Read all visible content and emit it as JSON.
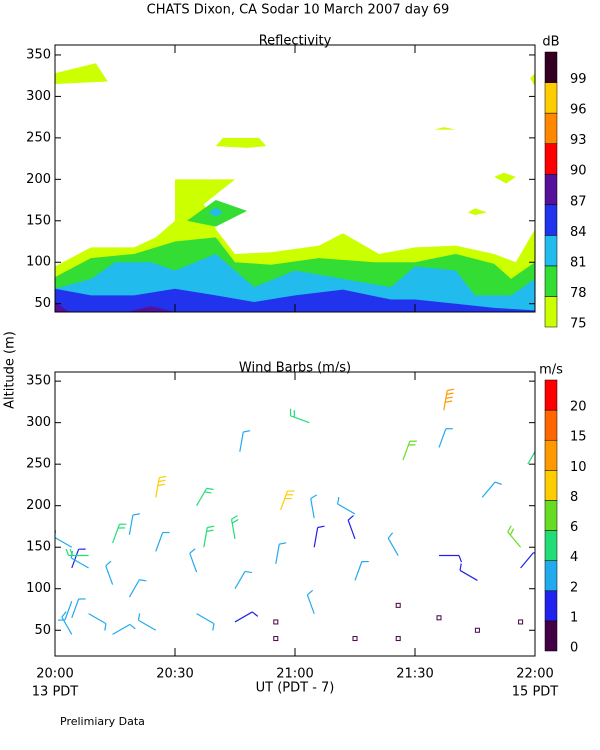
{
  "title": "CHATS Dixon, CA  Sodar  10 March 2007  day  69",
  "ylabel": "Altitude (m)",
  "xlabel": "UT  (PDT - 7)",
  "start_label": "13 PDT",
  "end_label": "15 PDT",
  "note": "Prelimiary Data",
  "chart_data": [
    {
      "type": "contour",
      "title": "Reflectivity",
      "xlim": [
        20,
        22
      ],
      "ylim": [
        40,
        362
      ],
      "xticks": [
        20,
        20.5,
        21,
        21.5,
        22
      ],
      "yticks": [
        50,
        100,
        150,
        200,
        250,
        300,
        350
      ],
      "colorbar": {
        "unit": "dB",
        "levels": [
          75,
          78,
          81,
          84,
          87,
          90,
          93,
          96,
          99
        ],
        "colors": [
          "#ccff00",
          "#33dd33",
          "#22bbee",
          "#2233ee",
          "#551199",
          "#ff0000",
          "#ff8800",
          "#ffcc00",
          "#330022"
        ]
      },
      "regions": [
        {
          "level": 75,
          "x": [
            20,
            20.15,
            20.33,
            20.42,
            20.5,
            20.5,
            20.75,
            20.62,
            20.67,
            20.75,
            20.9,
            21.1,
            21.2,
            21.35,
            21.5,
            21.67,
            21.83,
            21.92,
            22,
            22,
            20
          ],
          "y": [
            95,
            118,
            118,
            130,
            150,
            200,
            200,
            170,
            140,
            110,
            112,
            120,
            135,
            110,
            118,
            120,
            110,
            100,
            140,
            40,
            40
          ]
        },
        {
          "level": 75,
          "x": [
            20,
            20,
            20.17,
            20.22
          ],
          "y": [
            315,
            328,
            340,
            318
          ]
        },
        {
          "level": 75,
          "x": [
            20.67,
            20.7,
            20.85,
            20.88,
            20.8
          ],
          "y": [
            240,
            250,
            250,
            240,
            238
          ]
        },
        {
          "level": 75,
          "x": [
            21.58,
            21.62,
            21.67
          ],
          "y": [
            260,
            263,
            260
          ]
        },
        {
          "level": 75,
          "x": [
            21.83,
            21.87,
            21.92,
            21.88
          ],
          "y": [
            203,
            208,
            203,
            195
          ]
        },
        {
          "level": 75,
          "x": [
            21.72,
            21.75,
            21.8,
            21.75
          ],
          "y": [
            160,
            165,
            160,
            157
          ]
        },
        {
          "level": 75,
          "x": [
            21.98,
            22,
            22
          ],
          "y": [
            322,
            328,
            312
          ]
        },
        {
          "level": 78,
          "x": [
            20,
            20.15,
            20.33,
            20.5,
            20.67,
            20.75,
            20.9,
            21.1,
            21.33,
            21.5,
            21.67,
            21.83,
            21.9,
            22,
            22,
            20
          ],
          "y": [
            82,
            105,
            110,
            125,
            130,
            100,
            97,
            105,
            100,
            100,
            110,
            98,
            80,
            100,
            40,
            40
          ]
        },
        {
          "level": 78,
          "x": [
            20.55,
            20.67,
            20.8,
            20.67
          ],
          "y": [
            150,
            175,
            162,
            143
          ]
        },
        {
          "level": 81,
          "x": [
            20,
            20.15,
            20.25,
            20.4,
            20.5,
            20.67,
            20.83,
            21,
            21.2,
            21.4,
            21.5,
            21.67,
            21.75,
            21.9,
            22,
            22,
            20
          ],
          "y": [
            68,
            80,
            100,
            100,
            90,
            110,
            70,
            90,
            80,
            70,
            95,
            90,
            60,
            60,
            80,
            40,
            40
          ]
        },
        {
          "level": 81,
          "x": [
            20.64,
            20.67,
            20.7,
            20.67
          ],
          "y": [
            160,
            166,
            160,
            155
          ]
        },
        {
          "level": 84,
          "x": [
            20,
            20.15,
            20.33,
            20.5,
            20.67,
            20.83,
            21,
            21.2,
            21.4,
            21.5,
            21.67,
            21.83,
            22,
            22,
            20
          ],
          "y": [
            68,
            60,
            60,
            68,
            60,
            52,
            60,
            67,
            55,
            55,
            50,
            45,
            42,
            40,
            40
          ]
        },
        {
          "level": 87,
          "x": [
            20,
            20,
            20.06
          ],
          "y": [
            40,
            52,
            40
          ]
        },
        {
          "level": 87,
          "x": [
            20.3,
            20.4,
            20.5
          ],
          "y": [
            40,
            47,
            40
          ]
        }
      ]
    },
    {
      "type": "barbs",
      "title": "Wind Barbs (m/s)",
      "xlim": [
        20,
        22
      ],
      "ylim": [
        19,
        361
      ],
      "xticks": [
        {
          "value": 20,
          "label": "20:00"
        },
        {
          "value": 20.5,
          "label": "20:30"
        },
        {
          "value": 21,
          "label": "21:00"
        },
        {
          "value": 21.5,
          "label": "21:30"
        },
        {
          "value": 22,
          "label": "22:00"
        }
      ],
      "yticks": [
        50,
        100,
        150,
        200,
        250,
        300,
        350
      ],
      "colorbar": {
        "unit": "m/s",
        "levels": [
          0,
          1,
          2,
          4,
          6,
          8,
          10,
          15,
          20
        ],
        "colors": [
          "#440044",
          "#2222ee",
          "#22aaee",
          "#22dd77",
          "#66dd22",
          "#ffcc00",
          "#ff9900",
          "#ff6600",
          "#ff0000"
        ]
      },
      "x": [
        20.07,
        20.07,
        20.07,
        20.07,
        20.07,
        20.14,
        20.14,
        20.14,
        20.24,
        20.24,
        20.24,
        20.31,
        20.31,
        20.42,
        20.42,
        20.42,
        20.59,
        20.59,
        20.59,
        20.62,
        20.75,
        20.75,
        20.75,
        20.77,
        20.92,
        20.92,
        20.92,
        20.94,
        21.08,
        21.08,
        21.08,
        21.06,
        21.25,
        21.25,
        21.25,
        21.25,
        21.43,
        21.43,
        21.43,
        21.45,
        21.6,
        21.6,
        21.6,
        21.62,
        21.76,
        21.76,
        21.78,
        21.94,
        21.94,
        21.94,
        21.97
      ],
      "altitude": [
        45,
        65,
        85,
        125,
        150,
        70,
        125,
        140,
        45,
        105,
        155,
        90,
        165,
        50,
        145,
        210,
        70,
        120,
        200,
        150,
        60,
        100,
        160,
        265,
        40,
        60,
        130,
        195,
        70,
        150,
        185,
        300,
        40,
        110,
        160,
        190,
        40,
        80,
        140,
        255,
        65,
        140,
        270,
        315,
        50,
        110,
        210,
        60,
        125,
        150,
        250
      ],
      "speed": [
        3,
        3,
        2,
        1,
        3,
        3,
        3,
        5,
        3,
        3,
        5,
        2,
        3,
        3,
        3,
        9,
        2,
        3,
        5,
        5,
        1,
        3,
        5,
        3,
        0.5,
        0.5,
        3,
        9,
        3,
        1,
        3,
        5,
        0.5,
        3,
        1,
        3,
        0.5,
        0.5,
        3,
        7,
        0.5,
        1,
        3,
        12,
        0.5,
        1,
        3,
        0.5,
        1,
        6,
        5
      ],
      "direction": [
        330,
        20,
        200,
        20,
        300,
        120,
        300,
        270,
        60,
        340,
        20,
        30,
        10,
        300,
        20,
        10,
        120,
        340,
        30,
        10,
        60,
        30,
        350,
        10,
        0,
        0,
        10,
        20,
        340,
        10,
        350,
        290,
        0,
        20,
        340,
        300,
        0,
        0,
        330,
        20,
        0,
        90,
        20,
        10,
        0,
        300,
        40,
        0,
        40,
        320,
        30
      ]
    }
  ]
}
